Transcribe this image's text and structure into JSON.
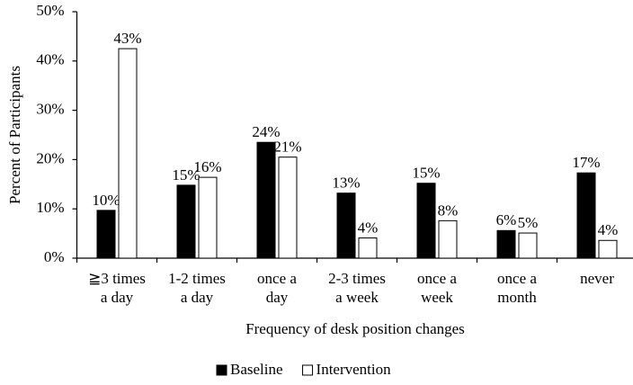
{
  "chart_data": {
    "type": "bar",
    "x_label": "Frequency of desk position changes",
    "y_label": "Percent of Participants",
    "categories": [
      "≧3 times\na day",
      "1-2 times\na day",
      "once a\nday",
      "2-3 times\na week",
      "once a\nweek",
      "once a\nmonth",
      "never"
    ],
    "series": [
      {
        "name": "Baseline",
        "color": "#000000",
        "values": [
          9.7,
          14.8,
          23.5,
          13.2,
          15.2,
          5.6,
          17.3
        ],
        "value_labels": [
          "10%",
          "15%",
          "24%",
          "13%",
          "15%",
          "6%",
          "17%"
        ]
      },
      {
        "name": "Intervention",
        "color": "#ffffff",
        "values": [
          42.5,
          16.4,
          20.5,
          4.1,
          7.6,
          5.1,
          3.6
        ],
        "value_labels": [
          "43%",
          "16%",
          "21%",
          "4%",
          "8%",
          "5%",
          "4%"
        ]
      }
    ],
    "ylim": [
      0,
      50
    ],
    "yticks": [
      {
        "value": 0,
        "label": "0%"
      },
      {
        "value": 10,
        "label": "10%"
      },
      {
        "value": 20,
        "label": "20%"
      },
      {
        "value": 30,
        "label": "30%"
      },
      {
        "value": 40,
        "label": "40%"
      },
      {
        "value": 50,
        "label": "50%"
      }
    ],
    "legend": "bottom"
  }
}
